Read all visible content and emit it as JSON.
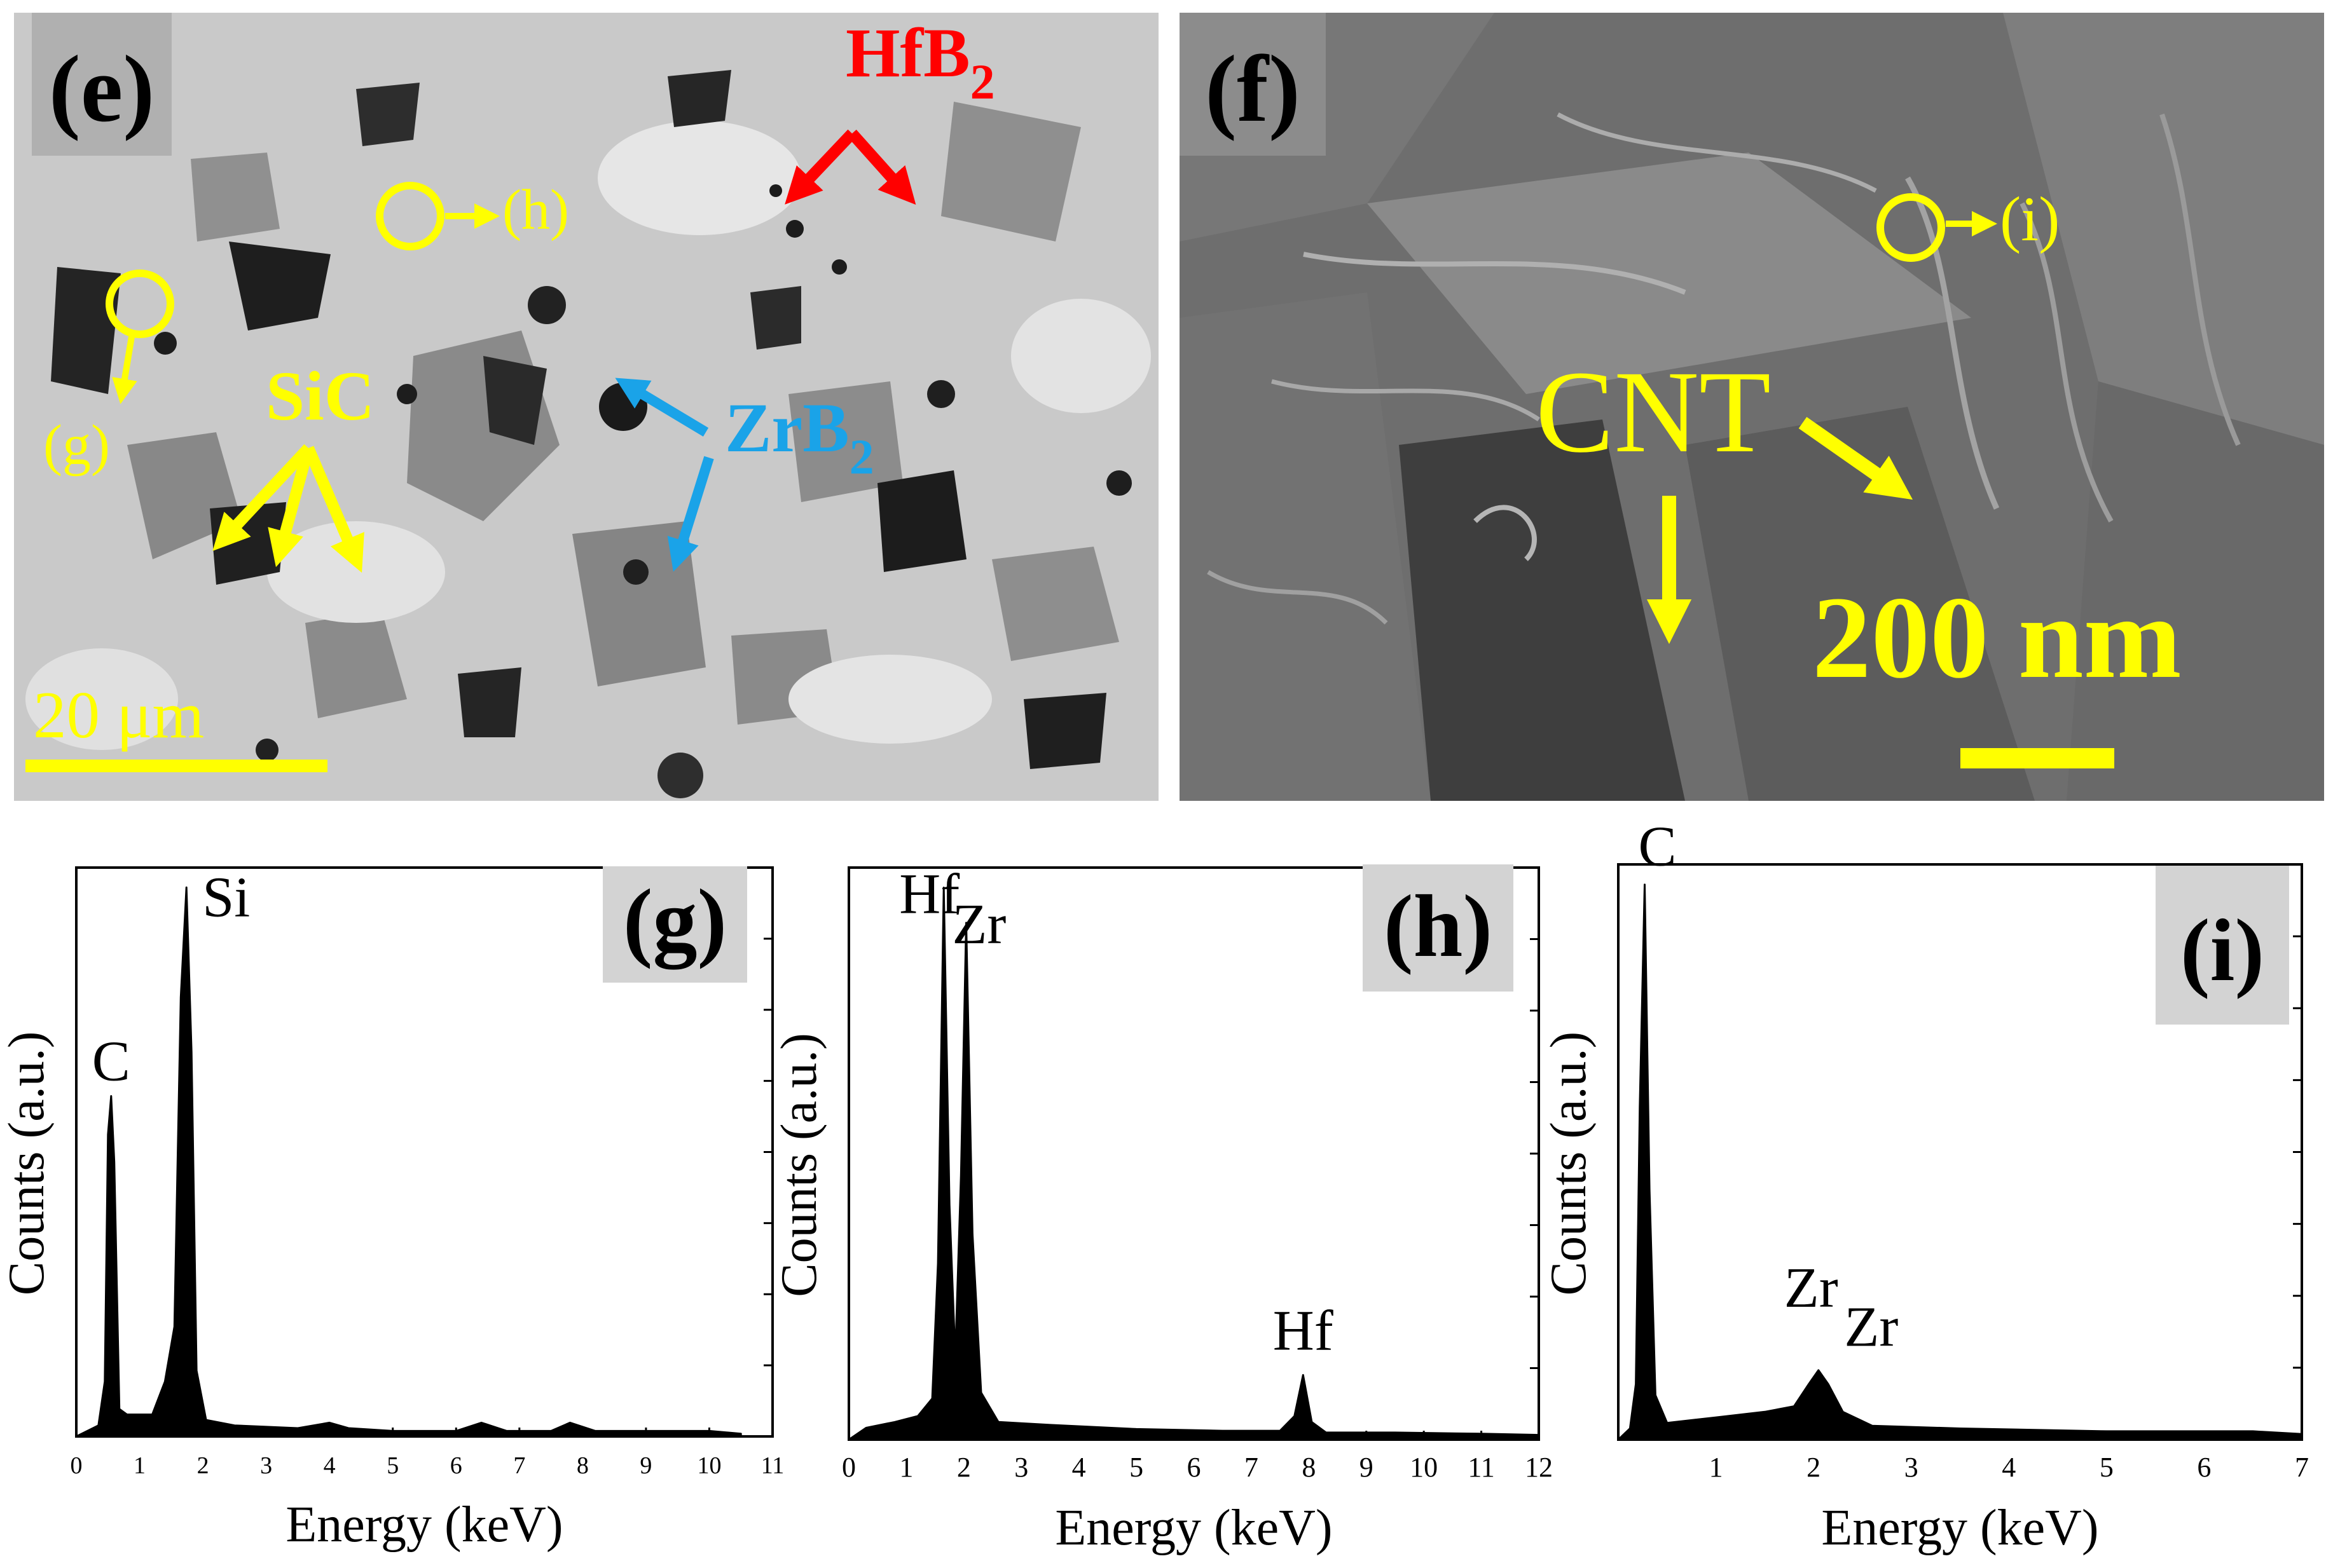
{
  "panel_e": {
    "label": "(e)",
    "phases": {
      "hfb2": "HfB",
      "zrb2": "ZrB",
      "sic": "SiC",
      "sub2": "2"
    },
    "points": {
      "h": "(h)",
      "g": "(g)"
    },
    "scale_bar": "20 μm",
    "colors": {
      "hfb2": "#ff0000",
      "zrb2": "#1aa3e8",
      "annotation": "#ffff00"
    }
  },
  "panel_f": {
    "label": "(f)",
    "feature": "CNT",
    "point": "(i)",
    "scale_bar": "200 nm"
  },
  "chart_data": [
    {
      "type": "area",
      "label": "(g)",
      "xlabel": "Energy (keV)",
      "ylabel": "Counts (a.u.)",
      "xlim": [
        0,
        11
      ],
      "ticks": [
        "0",
        "1",
        "2",
        "3",
        "4",
        "5",
        "6",
        "7",
        "8",
        "9",
        "10",
        "11"
      ],
      "peak_labels": [
        {
          "text": "C",
          "x": 0.55
        },
        {
          "text": "Si",
          "x": 1.74
        }
      ],
      "x": [
        0,
        0.35,
        0.45,
        0.5,
        0.55,
        0.6,
        0.68,
        0.8,
        1.0,
        1.2,
        1.4,
        1.55,
        1.65,
        1.74,
        1.82,
        1.9,
        2.05,
        2.5,
        3.5,
        4.0,
        4.3,
        5.0,
        6.0,
        6.4,
        6.8,
        7.5,
        7.8,
        8.2,
        9.0,
        10.0,
        10.5
      ],
      "values": [
        0,
        2,
        10,
        55,
        62,
        50,
        5,
        4,
        4,
        4,
        10,
        20,
        80,
        100,
        70,
        12,
        3,
        2,
        1.5,
        2.5,
        1.5,
        1,
        1,
        2.5,
        1,
        1,
        2.5,
        1,
        1,
        1,
        0.5
      ]
    },
    {
      "type": "area",
      "label": "(h)",
      "xlabel": "Energy (keV)",
      "ylabel": "Counts (a.u.)",
      "xlim": [
        0,
        12
      ],
      "ticks": [
        "0",
        "1",
        "2",
        "3",
        "4",
        "5",
        "6",
        "7",
        "8",
        "9",
        "10",
        "11",
        "12"
      ],
      "peak_labels": [
        {
          "text": "Hf",
          "x": 1.65
        },
        {
          "text": "Zr",
          "x": 2.04
        },
        {
          "text": "Hf",
          "x": 7.9
        }
      ],
      "x": [
        0,
        0.3,
        0.8,
        1.2,
        1.45,
        1.55,
        1.65,
        1.75,
        1.85,
        1.95,
        2.04,
        2.15,
        2.3,
        2.6,
        3.5,
        5.0,
        6.5,
        7.5,
        7.75,
        7.9,
        8.05,
        8.3,
        9.5,
        11.0,
        12.0
      ],
      "values": [
        0,
        2,
        3,
        4,
        7,
        30,
        94,
        40,
        14,
        45,
        88,
        35,
        8,
        3,
        2.5,
        1.8,
        1.5,
        1.5,
        4,
        11,
        3,
        1.2,
        1.2,
        1,
        0.8
      ]
    },
    {
      "type": "area",
      "label": "(i)",
      "xlabel": "Energy (keV)",
      "ylabel": "Counts (a.u.)",
      "xlim": [
        0,
        7
      ],
      "ticks": [
        "",
        "1",
        "2",
        "3",
        "4",
        "5",
        "6",
        "7"
      ],
      "peak_labels": [
        {
          "text": "C",
          "x": 0.27
        },
        {
          "text": "Zr",
          "x": 2.04
        },
        {
          "text": "Zr",
          "x": 2.2
        }
      ],
      "x": [
        0,
        0.12,
        0.18,
        0.22,
        0.27,
        0.32,
        0.38,
        0.5,
        1.0,
        1.5,
        1.8,
        1.95,
        2.05,
        2.15,
        2.3,
        2.6,
        3.5,
        5.0,
        6.5,
        7.0
      ],
      "values": [
        0,
        2,
        10,
        60,
        100,
        45,
        8,
        3,
        4,
        5,
        6,
        10,
        12.5,
        10,
        5,
        2.5,
        2,
        1.5,
        1.5,
        1
      ]
    }
  ]
}
